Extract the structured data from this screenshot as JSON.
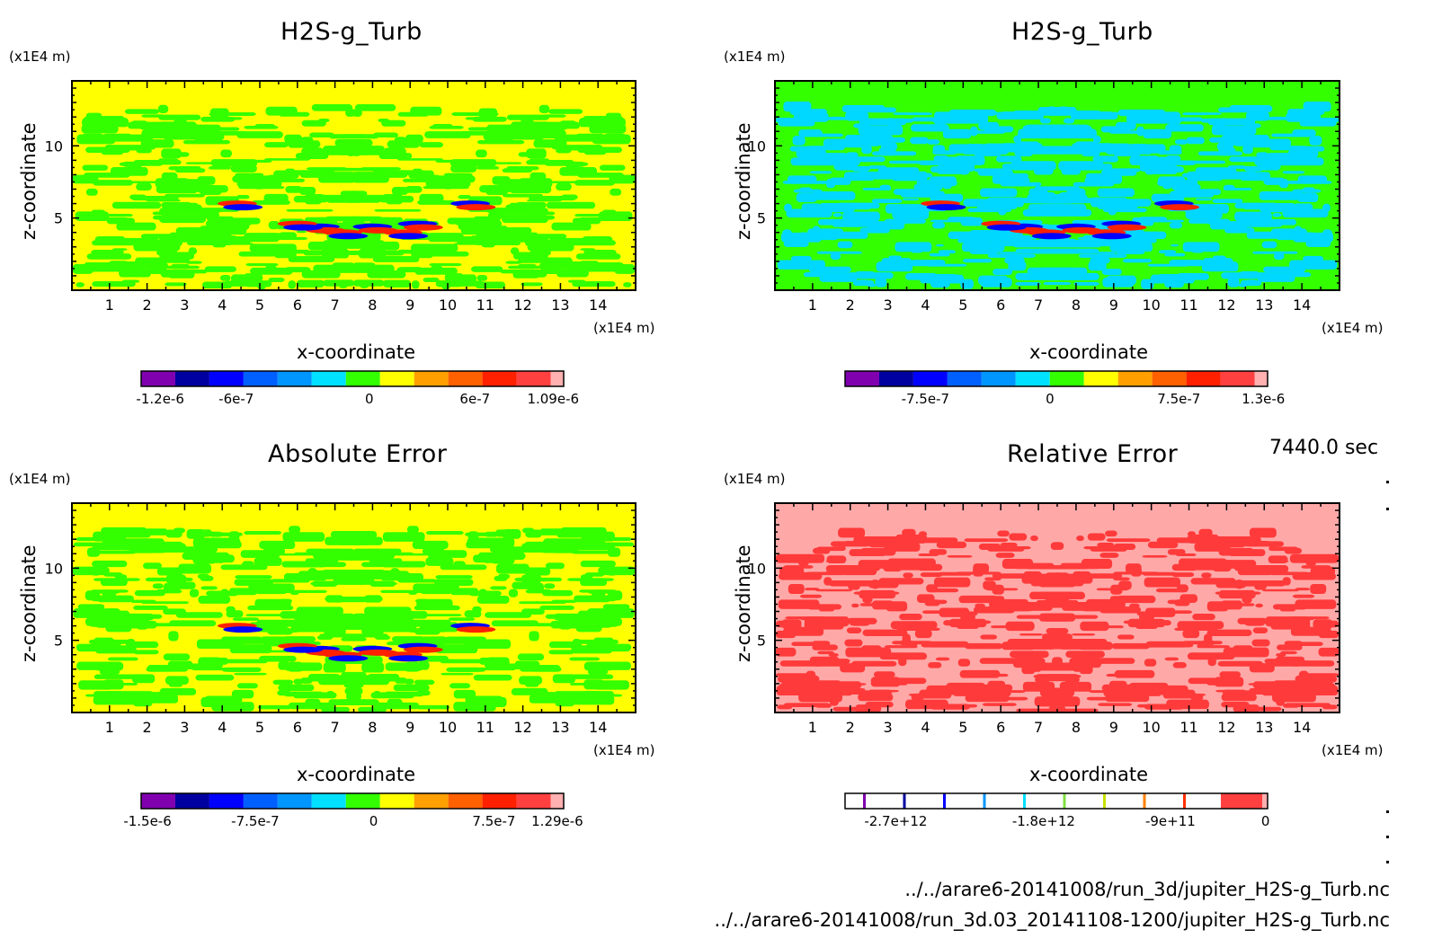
{
  "time_label": "7440.0 sec",
  "file_paths": [
    "../../arare6-20141008/run_3d/jupiter_H2S-g_Turb.nc",
    "../../arare6-20141008/run_3d.03_20141108-1200/jupiter_H2S-g_Turb.nc"
  ],
  "chart_data": [
    {
      "type": "heatmap",
      "title": "H2S-g_Turb",
      "xlabel": "x-coordinate",
      "ylabel": "z-coordinate",
      "x_unit": "(x1E4 m)",
      "y_unit": "(x1E4 m)",
      "xlim": [
        0,
        15
      ],
      "ylim": [
        0,
        14.5
      ],
      "x_ticks": [
        "1",
        "2",
        "3",
        "4",
        "5",
        "6",
        "7",
        "8",
        "9",
        "10",
        "11",
        "12",
        "13",
        "14"
      ],
      "y_ticks": [
        "5",
        "10"
      ],
      "background_color": "#ffff00",
      "pattern_color": "#33ff00",
      "colorbar": {
        "colors": [
          "#8000b0",
          "#0000a0",
          "#0000ff",
          "#0060ff",
          "#0096ff",
          "#00e0ff",
          "#33ff00",
          "#ffff00",
          "#ffa000",
          "#ff6000",
          "#ff2000",
          "#ff4040",
          "#ffb0b0"
        ],
        "labels": [
          "-1.2e-6",
          "-6e-7",
          "0",
          "6e-7",
          "1.09e-6"
        ]
      }
    },
    {
      "type": "heatmap",
      "title": "H2S-g_Turb",
      "xlabel": "x-coordinate",
      "ylabel": "z-coordinate",
      "x_unit": "(x1E4 m)",
      "y_unit": "(x1E4 m)",
      "xlim": [
        0,
        15
      ],
      "ylim": [
        0,
        14.5
      ],
      "x_ticks": [
        "1",
        "2",
        "3",
        "4",
        "5",
        "6",
        "7",
        "8",
        "9",
        "10",
        "11",
        "12",
        "13",
        "14"
      ],
      "y_ticks": [
        "5",
        "10"
      ],
      "background_color": "#33ff00",
      "pattern_color": "#00d8ff",
      "colorbar": {
        "colors": [
          "#8000b0",
          "#0000a0",
          "#0000ff",
          "#0060ff",
          "#0096ff",
          "#00e0ff",
          "#33ff00",
          "#ffff00",
          "#ffa000",
          "#ff6000",
          "#ff2000",
          "#ff4040",
          "#ffb0b0"
        ],
        "labels": [
          "-7.5e-7",
          "0",
          "7.5e-7",
          "1.3e-6"
        ]
      }
    },
    {
      "type": "heatmap",
      "title": "Absolute Error",
      "xlabel": "x-coordinate",
      "ylabel": "z-coordinate",
      "x_unit": "(x1E4 m)",
      "y_unit": "(x1E4 m)",
      "xlim": [
        0,
        15
      ],
      "ylim": [
        0,
        14.5
      ],
      "x_ticks": [
        "1",
        "2",
        "3",
        "4",
        "5",
        "6",
        "7",
        "8",
        "9",
        "10",
        "11",
        "12",
        "13",
        "14"
      ],
      "y_ticks": [
        "5",
        "10"
      ],
      "background_color": "#ffff00",
      "pattern_color": "#33ff00",
      "colorbar": {
        "colors": [
          "#8000b0",
          "#0000a0",
          "#0000ff",
          "#0060ff",
          "#0096ff",
          "#00e0ff",
          "#33ff00",
          "#ffff00",
          "#ffa000",
          "#ff6000",
          "#ff2000",
          "#ff4040",
          "#ffb0b0"
        ],
        "labels": [
          "-1.5e-6",
          "-7.5e-7",
          "0",
          "7.5e-7",
          "1.29e-6"
        ]
      }
    },
    {
      "type": "heatmap",
      "title": "Relative Error",
      "xlabel": "x-coordinate",
      "ylabel": "z-coordinate",
      "x_unit": "(x1E4 m)",
      "y_unit": "(x1E4 m)",
      "xlim": [
        0,
        15
      ],
      "ylim": [
        0,
        14.5
      ],
      "x_ticks": [
        "1",
        "2",
        "3",
        "4",
        "5",
        "6",
        "7",
        "8",
        "9",
        "10",
        "11",
        "12",
        "13",
        "14"
      ],
      "y_ticks": [
        "5",
        "10"
      ],
      "background_color": "#ffa8a8",
      "pattern_color": "#ff3a3a",
      "colorbar": {
        "colors": [
          "#8000b0",
          "#0000a0",
          "#0000ff",
          "#0060ff",
          "#0096ff",
          "#00e0ff",
          "#33ff00",
          "#c8e000",
          "#ffa000",
          "#ff6000",
          "#ff2000",
          "#ff4040",
          "#ffb0b0"
        ],
        "labels": [
          "-2.7e+12",
          "-1.8e+12",
          "-9e+11",
          "0"
        ]
      }
    }
  ]
}
